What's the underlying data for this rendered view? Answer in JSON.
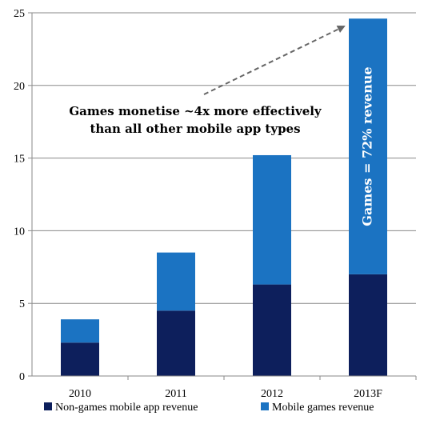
{
  "chart_data": {
    "type": "bar",
    "stacked": true,
    "categories": [
      "2010",
      "2011",
      "2012",
      "2013F"
    ],
    "series": [
      {
        "name": "Non-games mobile app revenue",
        "values": [
          2.3,
          4.5,
          6.3,
          7.0
        ],
        "color": "#0d1f5c"
      },
      {
        "name": "Mobile games revenue",
        "values": [
          1.6,
          4.0,
          8.9,
          17.6
        ],
        "color": "#1b73c2"
      }
    ],
    "ylim": [
      0,
      25
    ],
    "yticks": [
      0,
      5,
      10,
      15,
      20,
      25
    ],
    "grid": true,
    "legend": "bottom",
    "annotations": {
      "callout_line1": "Games monetise ~4x more effectively",
      "callout_line2": "than all other mobile app types",
      "in_bar_label": "Games = 72% revenue"
    }
  }
}
